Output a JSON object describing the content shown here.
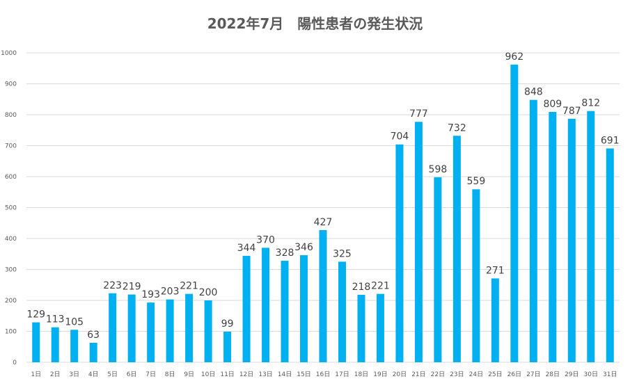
{
  "chart_data": {
    "type": "bar",
    "title": "2022年7月　陽性患者の発生状況",
    "xlabel": "",
    "ylabel": "",
    "ylim": [
      0,
      1000
    ],
    "yticks": [
      0,
      100,
      200,
      300,
      400,
      500,
      600,
      700,
      800,
      900,
      1000
    ],
    "grid": true,
    "legend": "none",
    "bar_color": "#00B0F0",
    "categories": [
      "1日",
      "2日",
      "3日",
      "4日",
      "5日",
      "6日",
      "7日",
      "8日",
      "9日",
      "10日",
      "11日",
      "12日",
      "13日",
      "14日",
      "15日",
      "16日",
      "17日",
      "18日",
      "19日",
      "20日",
      "21日",
      "22日",
      "23日",
      "24日",
      "25日",
      "26日",
      "27日",
      "28日",
      "29日",
      "30日",
      "31日"
    ],
    "values": [
      129,
      113,
      105,
      63,
      223,
      219,
      193,
      203,
      221,
      200,
      99,
      344,
      370,
      328,
      346,
      427,
      325,
      218,
      221,
      704,
      777,
      598,
      732,
      559,
      271,
      962,
      848,
      809,
      787,
      812,
      691
    ]
  }
}
